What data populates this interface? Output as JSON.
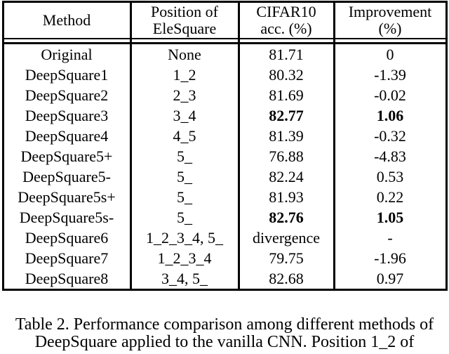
{
  "table": {
    "headers": [
      {
        "line1": "Method",
        "line2": ""
      },
      {
        "line1": "Position of",
        "line2": "EleSquare"
      },
      {
        "line1": "CIFAR10",
        "line2": "acc. (%)"
      },
      {
        "line1": "Improvement",
        "line2": "(%)"
      }
    ],
    "rows": [
      {
        "method": "Original",
        "position": "None",
        "acc": "81.71",
        "improvement": "0",
        "bold": false
      },
      {
        "method": "DeepSquare1",
        "position": "1_2",
        "acc": "80.32",
        "improvement": "-1.39",
        "bold": false
      },
      {
        "method": "DeepSquare2",
        "position": "2_3",
        "acc": "81.69",
        "improvement": "-0.02",
        "bold": false
      },
      {
        "method": "DeepSquare3",
        "position": "3_4",
        "acc": "82.77",
        "improvement": "1.06",
        "bold": true
      },
      {
        "method": "DeepSquare4",
        "position": "4_5",
        "acc": "81.39",
        "improvement": "-0.32",
        "bold": false
      },
      {
        "method": "DeepSquare5+",
        "position": "5_",
        "acc": "76.88",
        "improvement": "-4.83",
        "bold": false
      },
      {
        "method": "DeepSquare5-",
        "position": "5_",
        "acc": "82.24",
        "improvement": "0.53",
        "bold": false
      },
      {
        "method": "DeepSquare5s+",
        "position": "5_",
        "acc": "81.93",
        "improvement": "0.22",
        "bold": false
      },
      {
        "method": "DeepSquare5s-",
        "position": "5_",
        "acc": "82.76",
        "improvement": "1.05",
        "bold": true
      },
      {
        "method": "DeepSquare6",
        "position": "1_2_3_4, 5_",
        "acc": "divergence",
        "improvement": "-",
        "bold": false
      },
      {
        "method": "DeepSquare7",
        "position": "1_2_3_4",
        "acc": "79.75",
        "improvement": "-1.96",
        "bold": false
      },
      {
        "method": "DeepSquare8",
        "position": "3_4, 5_",
        "acc": "82.68",
        "improvement": "0.97",
        "bold": false
      }
    ]
  },
  "caption": {
    "line1": "Table 2. Performance comparison among different methods of",
    "line2": "DeepSquare applied to the vanilla CNN. Position 1_2 of"
  },
  "colors": {
    "text": "#000000",
    "border": "#000000",
    "background": "#ffffff"
  }
}
